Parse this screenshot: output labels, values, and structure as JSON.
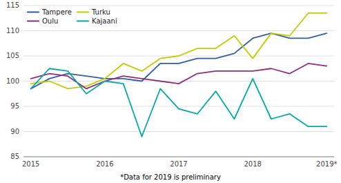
{
  "chart_data": {
    "type": "line",
    "categories": [
      "2015",
      null,
      null,
      null,
      "2016",
      null,
      null,
      null,
      "2017",
      null,
      null,
      null,
      "2018",
      null,
      null,
      null,
      "2019*"
    ],
    "series": [
      {
        "name": "Tampere",
        "color": "#2E5FA3",
        "values": [
          98.5,
          100.5,
          101.5,
          101.0,
          100.5,
          100.5,
          100.0,
          103.5,
          103.5,
          104.5,
          104.5,
          105.5,
          108.5,
          109.5,
          108.5,
          108.5,
          109.5
        ]
      },
      {
        "name": "Turku",
        "color": "#BFCE00",
        "values": [
          99.5,
          100.0,
          98.5,
          99.0,
          100.5,
          103.5,
          102.0,
          104.5,
          105.0,
          106.5,
          106.5,
          109.0,
          104.5,
          109.5,
          109.0,
          113.5,
          113.5
        ]
      },
      {
        "name": "Oulu",
        "color": "#932B82",
        "values": [
          100.5,
          101.5,
          101.0,
          98.5,
          100.0,
          101.0,
          100.5,
          100.0,
          99.5,
          101.5,
          102.0,
          102.0,
          102.0,
          102.5,
          101.5,
          103.5,
          103.0
        ]
      },
      {
        "name": "Kajaani",
        "color": "#00AAAA",
        "values": [
          98.5,
          102.5,
          102.0,
          97.5,
          100.0,
          99.5,
          89.0,
          98.5,
          94.5,
          93.5,
          98.0,
          92.5,
          100.5,
          92.5,
          93.5,
          91.0,
          91.0
        ]
      }
    ],
    "ylim": [
      85,
      115
    ],
    "yticks": [
      85,
      90,
      95,
      100,
      105,
      110,
      115
    ],
    "grid": true,
    "legend": "upper-left",
    "annotations": [
      "*Data for 2019 is preliminary"
    ]
  }
}
